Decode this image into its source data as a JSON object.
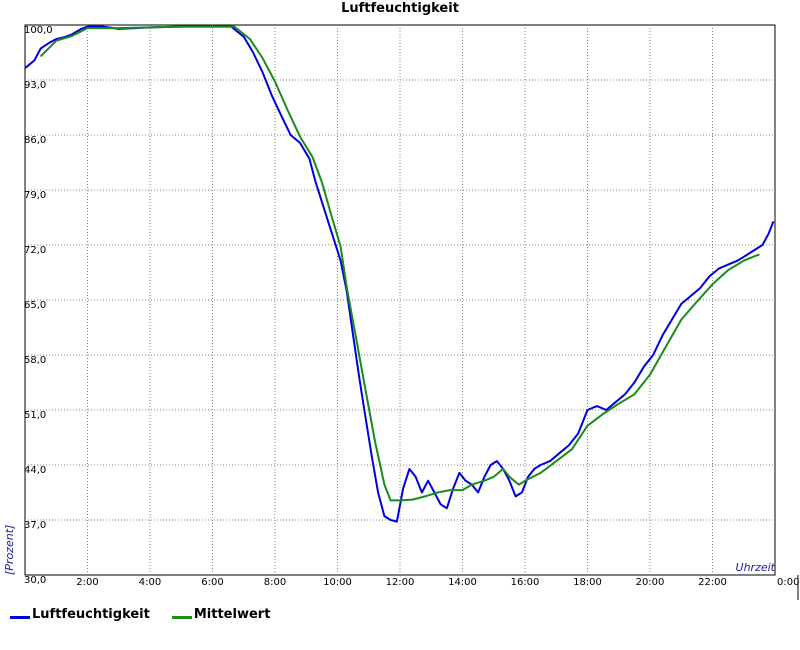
{
  "chart_data": {
    "type": "line",
    "title": "Luftfeuchtigkeit",
    "xlabel": "Uhrzeit",
    "ylabel": "[Prozent]",
    "xlim": [
      0,
      24
    ],
    "ylim": [
      30,
      100
    ],
    "y_ticks": [
      "30,0",
      "37,0",
      "44,0",
      "51,0",
      "58,0",
      "65,0",
      "72,0",
      "79,0",
      "86,0",
      "93,0",
      "100,0"
    ],
    "x_ticks": [
      "2:00",
      "4:00",
      "6:00",
      "8:00",
      "10:00",
      "12:00",
      "14:00",
      "16:00",
      "18:00",
      "20:00",
      "22:00",
      "0:00"
    ],
    "grid": true,
    "legend_position": "bottom-left",
    "series": [
      {
        "name": "Luftfeuchtigkeit",
        "color": "#0000dd",
        "points": [
          [
            0.0,
            94.5
          ],
          [
            0.3,
            95.5
          ],
          [
            0.5,
            97.0
          ],
          [
            0.8,
            97.8
          ],
          [
            1.0,
            98.2
          ],
          [
            1.3,
            98.5
          ],
          [
            1.5,
            98.8
          ],
          [
            1.8,
            99.5
          ],
          [
            2.0,
            99.8
          ],
          [
            2.5,
            99.8
          ],
          [
            3.0,
            99.5
          ],
          [
            3.5,
            99.6
          ],
          [
            4.0,
            99.7
          ],
          [
            5.0,
            99.8
          ],
          [
            6.0,
            99.8
          ],
          [
            6.6,
            99.8
          ],
          [
            7.0,
            98.5
          ],
          [
            7.3,
            96.5
          ],
          [
            7.6,
            94.0
          ],
          [
            7.9,
            91.0
          ],
          [
            8.2,
            88.5
          ],
          [
            8.5,
            86.0
          ],
          [
            8.8,
            85.0
          ],
          [
            9.1,
            83.0
          ],
          [
            9.3,
            80.0
          ],
          [
            9.5,
            77.5
          ],
          [
            9.7,
            75.0
          ],
          [
            9.9,
            72.5
          ],
          [
            10.1,
            70.0
          ],
          [
            10.3,
            66.0
          ],
          [
            10.5,
            60.5
          ],
          [
            10.7,
            55.0
          ],
          [
            10.9,
            50.0
          ],
          [
            11.1,
            45.0
          ],
          [
            11.3,
            40.5
          ],
          [
            11.5,
            37.5
          ],
          [
            11.7,
            37.0
          ],
          [
            11.9,
            36.8
          ],
          [
            12.1,
            41.0
          ],
          [
            12.3,
            43.5
          ],
          [
            12.5,
            42.5
          ],
          [
            12.7,
            40.5
          ],
          [
            12.9,
            42.0
          ],
          [
            13.1,
            40.5
          ],
          [
            13.3,
            39.0
          ],
          [
            13.5,
            38.5
          ],
          [
            13.7,
            41.0
          ],
          [
            13.9,
            43.0
          ],
          [
            14.1,
            42.0
          ],
          [
            14.3,
            41.5
          ],
          [
            14.5,
            40.5
          ],
          [
            14.7,
            42.5
          ],
          [
            14.9,
            44.0
          ],
          [
            15.1,
            44.5
          ],
          [
            15.3,
            43.5
          ],
          [
            15.5,
            42.0
          ],
          [
            15.7,
            40.0
          ],
          [
            15.9,
            40.5
          ],
          [
            16.1,
            42.5
          ],
          [
            16.3,
            43.5
          ],
          [
            16.5,
            44.0
          ],
          [
            16.8,
            44.5
          ],
          [
            17.1,
            45.5
          ],
          [
            17.4,
            46.5
          ],
          [
            17.7,
            48.0
          ],
          [
            18.0,
            51.0
          ],
          [
            18.3,
            51.5
          ],
          [
            18.6,
            51.0
          ],
          [
            18.9,
            52.0
          ],
          [
            19.2,
            53.0
          ],
          [
            19.5,
            54.5
          ],
          [
            19.8,
            56.5
          ],
          [
            20.1,
            58.0
          ],
          [
            20.4,
            60.5
          ],
          [
            20.7,
            62.5
          ],
          [
            21.0,
            64.5
          ],
          [
            21.3,
            65.5
          ],
          [
            21.6,
            66.5
          ],
          [
            21.9,
            68.0
          ],
          [
            22.2,
            69.0
          ],
          [
            22.5,
            69.5
          ],
          [
            22.8,
            70.0
          ],
          [
            23.0,
            70.5
          ],
          [
            23.2,
            71.0
          ],
          [
            23.4,
            71.5
          ],
          [
            23.6,
            72.0
          ],
          [
            23.8,
            73.5
          ],
          [
            23.95,
            75.0
          ]
        ]
      },
      {
        "name": "Mittelwert",
        "color": "#1a8c1a",
        "points": [
          [
            0.5,
            96.0
          ],
          [
            1.0,
            98.0
          ],
          [
            1.5,
            98.6
          ],
          [
            2.0,
            99.6
          ],
          [
            3.0,
            99.6
          ],
          [
            4.0,
            99.7
          ],
          [
            5.0,
            99.8
          ],
          [
            6.0,
            99.8
          ],
          [
            6.7,
            99.8
          ],
          [
            7.2,
            98.2
          ],
          [
            7.6,
            95.8
          ],
          [
            8.0,
            92.8
          ],
          [
            8.4,
            89.2
          ],
          [
            8.8,
            85.8
          ],
          [
            9.2,
            83.2
          ],
          [
            9.5,
            80.0
          ],
          [
            9.8,
            75.8
          ],
          [
            10.1,
            71.8
          ],
          [
            10.3,
            66.5
          ],
          [
            10.6,
            60.0
          ],
          [
            10.9,
            53.5
          ],
          [
            11.2,
            47.0
          ],
          [
            11.5,
            41.5
          ],
          [
            11.7,
            39.5
          ],
          [
            12.0,
            39.5
          ],
          [
            12.4,
            39.6
          ],
          [
            12.8,
            40.0
          ],
          [
            13.2,
            40.5
          ],
          [
            13.6,
            40.8
          ],
          [
            14.0,
            40.8
          ],
          [
            14.3,
            41.5
          ],
          [
            14.7,
            42.0
          ],
          [
            15.0,
            42.5
          ],
          [
            15.3,
            43.5
          ],
          [
            15.5,
            42.5
          ],
          [
            15.8,
            41.5
          ],
          [
            16.1,
            42.2
          ],
          [
            16.5,
            43.0
          ],
          [
            17.0,
            44.5
          ],
          [
            17.5,
            46.0
          ],
          [
            18.0,
            49.0
          ],
          [
            18.5,
            50.5
          ],
          [
            19.0,
            51.8
          ],
          [
            19.5,
            53.0
          ],
          [
            20.0,
            55.5
          ],
          [
            20.5,
            59.0
          ],
          [
            21.0,
            62.5
          ],
          [
            21.5,
            64.8
          ],
          [
            22.0,
            67.0
          ],
          [
            22.5,
            68.8
          ],
          [
            23.0,
            70.0
          ],
          [
            23.3,
            70.5
          ],
          [
            23.5,
            70.8
          ]
        ]
      }
    ]
  }
}
